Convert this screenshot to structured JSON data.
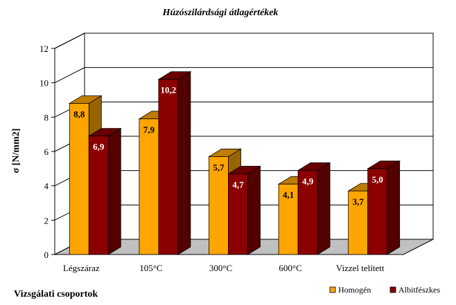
{
  "chart_data": {
    "type": "bar",
    "title": "Húzószilárdsági átlagértékek",
    "xlabel": "Vizsgálati csoportok",
    "ylabel": "σ [N/mm2]",
    "ylim": [
      0,
      12
    ],
    "yticks": [
      "0",
      "2",
      "4",
      "6",
      "8",
      "10",
      "12"
    ],
    "categories": [
      "Légszáraz",
      "105°C",
      "300°C",
      "600°C",
      "Vizzel telített"
    ],
    "series": [
      {
        "name": "Homogén",
        "values": [
          8.8,
          7.9,
          5.7,
          4.1,
          3.7
        ],
        "labels": [
          "8,8",
          "7,9",
          "5,7",
          "4,1",
          "3,7"
        ],
        "color": "#FFA500"
      },
      {
        "name": "Albitfészkes",
        "values": [
          6.9,
          10.2,
          4.7,
          4.9,
          5.0
        ],
        "labels": [
          "6,9",
          "10,2",
          "4,7",
          "4,9",
          "5,0"
        ],
        "color": "#8B0000"
      }
    ],
    "grid": true,
    "legend_position": "bottom-right"
  }
}
